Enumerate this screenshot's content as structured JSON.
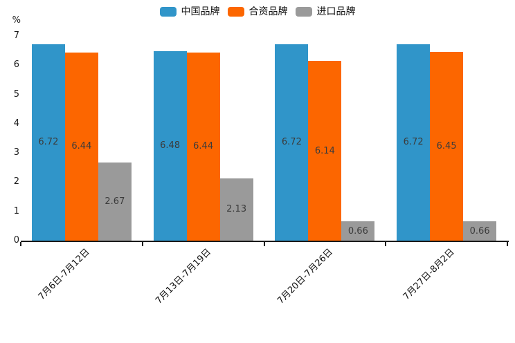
{
  "chart_data": {
    "type": "bar",
    "title": "",
    "xlabel": "",
    "ylabel": "%",
    "ylim": [
      0,
      7
    ],
    "yticks": [
      0,
      1,
      2,
      3,
      4,
      5,
      6,
      7
    ],
    "grid": false,
    "legend_position": "top-center",
    "categories": [
      "7月6日-7月12日",
      "7月13日-7月19日",
      "7月20日-7月26日",
      "7月27日-8月2日"
    ],
    "series": [
      {
        "name": "中国品牌",
        "color": "#3095C9",
        "values": [
          6.72,
          6.48,
          6.72,
          6.72
        ]
      },
      {
        "name": "合资品牌",
        "color": "#FC6600",
        "values": [
          6.44,
          6.44,
          6.14,
          6.45
        ]
      },
      {
        "name": "进口品牌",
        "color": "#9A9A9A",
        "values": [
          2.67,
          2.13,
          0.66,
          0.66
        ]
      }
    ],
    "value_label_color": "#3b3b3b",
    "axis_color": "#1a1a1a"
  }
}
